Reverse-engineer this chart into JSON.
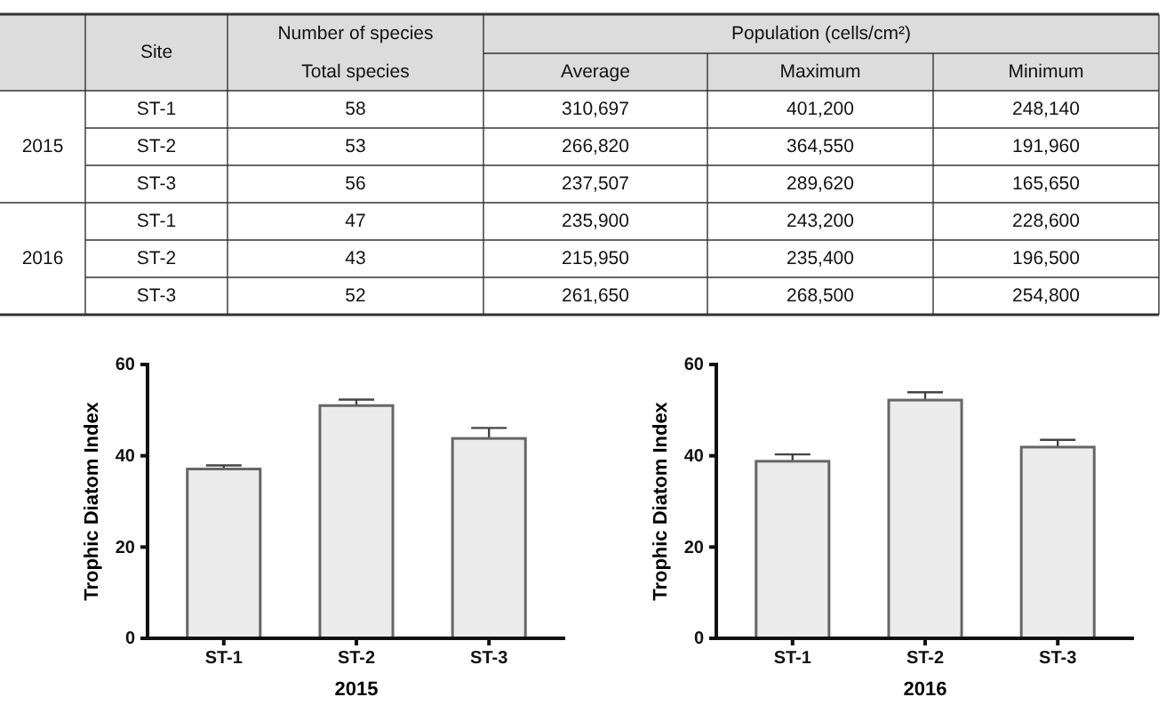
{
  "chart_data": [
    {
      "type": "other",
      "categories": [
        "ST-1",
        "ST-2",
        "ST-3",
        "ST-1",
        "ST-2",
        "ST-3"
      ],
      "annotations": [
        "Site",
        "Number  of  species",
        "Population  (cells/cm²)",
        "2015",
        "2016"
      ],
      "series": [
        {
          "name": "Total  species",
          "values": [
            58,
            53,
            56,
            47,
            43,
            52
          ]
        },
        {
          "name": "Average",
          "values": [
            310697,
            266820,
            237507,
            235900,
            215950,
            261650
          ],
          "value_labels": [
            "310,697",
            "266,820",
            "237,507",
            "235,900",
            "215,950",
            "261,650"
          ]
        },
        {
          "name": "Maximum",
          "values": [
            401200,
            364550,
            289620,
            243200,
            235400,
            268500
          ],
          "value_labels": [
            "401,200",
            "364,550",
            "289,620",
            "243,200",
            "235,400",
            "268,500"
          ]
        },
        {
          "name": "Minimum",
          "values": [
            248140,
            191960,
            165650,
            228600,
            196500,
            254800
          ],
          "value_labels": [
            "248,140",
            "191,960",
            "165,650",
            "228,600",
            "196,500",
            "254,800"
          ]
        }
      ],
      "data_labels": true
    },
    {
      "type": "bar",
      "categories": [
        "ST-1",
        "ST-2",
        "ST-3"
      ],
      "values": [
        37.1,
        51.0,
        43.8
      ],
      "errors": [
        0.8,
        1.3,
        2.3
      ],
      "color": "#ececec",
      "xlabel": "2015",
      "ylabel": "Trophic Diatom Index",
      "ylim": [
        0,
        60
      ],
      "yticks": [
        0,
        20,
        40,
        60
      ]
    },
    {
      "type": "bar",
      "categories": [
        "ST-1",
        "ST-2",
        "ST-3"
      ],
      "values": [
        38.8,
        52.2,
        41.9
      ],
      "errors": [
        1.5,
        1.7,
        1.6
      ],
      "color": "#ececec",
      "xlabel": "2016",
      "ylabel": "Trophic Diatom Index",
      "ylim": [
        0,
        60
      ],
      "yticks": [
        0,
        20,
        40,
        60
      ]
    }
  ]
}
